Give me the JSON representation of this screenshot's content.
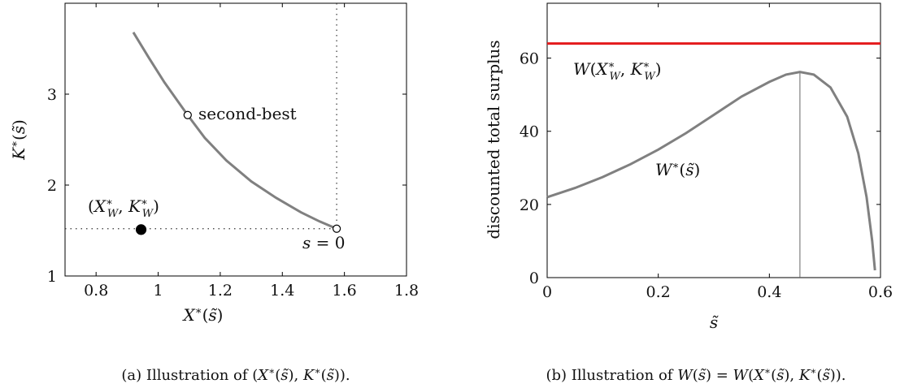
{
  "chart_data": [
    {
      "type": "line",
      "xlabel": "X*(s̃)",
      "ylabel": "K*(s̃)",
      "xlim": [
        0.7,
        1.8
      ],
      "ylim": [
        1,
        4
      ],
      "x_ticks": [
        "0.8",
        "1",
        "1.2",
        "1.4",
        "1.6",
        "1.8"
      ],
      "y_ticks": [
        "1",
        "2",
        "3"
      ],
      "grid": false,
      "series": [
        {
          "color": "#808080",
          "x": [
            0.92,
            0.97,
            1.02,
            1.095,
            1.15,
            1.22,
            1.3,
            1.38,
            1.46,
            1.52,
            1.575
          ],
          "y": [
            3.68,
            3.4,
            3.13,
            2.77,
            2.52,
            2.27,
            2.04,
            1.86,
            1.7,
            1.6,
            1.52
          ]
        }
      ],
      "points": [
        {
          "label": "second-best",
          "x": 1.095,
          "y": 2.77,
          "style": "open"
        },
        {
          "label": "s = 0",
          "x": 1.575,
          "y": 1.52,
          "style": "open"
        },
        {
          "label": "(X*_W, K*_W)",
          "x": 0.945,
          "y": 1.51,
          "style": "filled"
        }
      ],
      "reference_lines": [
        {
          "orientation": "vertical",
          "x": 1.575,
          "style": "dotted"
        },
        {
          "orientation": "horizontal",
          "y": 1.52,
          "style": "dotted"
        }
      ],
      "caption": "(a) Illustration of (X*(s̃), K*(s̃))."
    },
    {
      "type": "line",
      "xlabel": "s̃",
      "ylabel": "discounted total surplus",
      "xlim": [
        0,
        0.6
      ],
      "ylim": [
        0,
        75
      ],
      "x_ticks": [
        "0",
        "0.2",
        "0.4",
        "0.6"
      ],
      "y_ticks": [
        "0",
        "20",
        "40",
        "60"
      ],
      "grid": false,
      "series": [
        {
          "name": "W*(s̃)",
          "color": "#808080",
          "x": [
            0,
            0.05,
            0.1,
            0.15,
            0.2,
            0.25,
            0.3,
            0.35,
            0.4,
            0.43,
            0.455,
            0.48,
            0.51,
            0.54,
            0.56,
            0.575,
            0.585,
            0.59
          ],
          "y": [
            22,
            24.5,
            27.5,
            31,
            35,
            39.5,
            44.5,
            49.5,
            53.5,
            55.5,
            56.2,
            55.5,
            52,
            44,
            34,
            22,
            10,
            2
          ]
        },
        {
          "name": "W(X*_W, K*_W)",
          "color": "#e41a1c",
          "x": [
            0,
            0.6
          ],
          "y": [
            64,
            64
          ]
        }
      ],
      "reference_lines": [
        {
          "orientation": "vertical",
          "x": 0.455,
          "style": "solid-thin"
        }
      ],
      "caption": "(b) Illustration of W(s̃) = W(X*(s̃), K*(s̃))."
    }
  ],
  "colors": {
    "curve": "#808080",
    "red_line": "#e41a1c",
    "axis": "#000000"
  }
}
